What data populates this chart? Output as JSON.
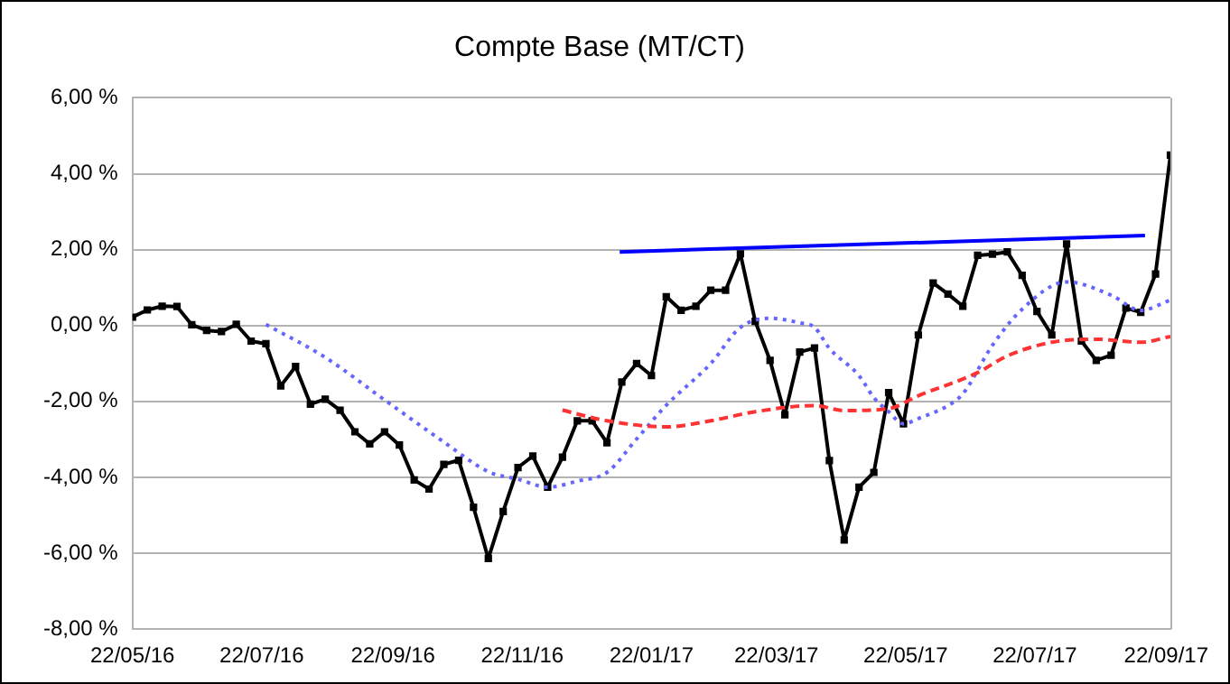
{
  "chart_data": {
    "type": "line",
    "title": "Compte Base (MT/CT)",
    "x": [
      "2016-05-22",
      "2016-05-29",
      "2016-06-05",
      "2016-06-12",
      "2016-06-19",
      "2016-06-26",
      "2016-07-03",
      "2016-07-10",
      "2016-07-17",
      "2016-07-24",
      "2016-07-31",
      "2016-08-07",
      "2016-08-14",
      "2016-08-21",
      "2016-08-28",
      "2016-09-04",
      "2016-09-11",
      "2016-09-18",
      "2016-09-25",
      "2016-10-02",
      "2016-10-09",
      "2016-10-16",
      "2016-10-23",
      "2016-10-30",
      "2016-11-06",
      "2016-11-13",
      "2016-11-20",
      "2016-11-27",
      "2016-12-04",
      "2016-12-11",
      "2016-12-18",
      "2016-12-25",
      "2017-01-01",
      "2017-01-08",
      "2017-01-15",
      "2017-01-22",
      "2017-01-29",
      "2017-02-05",
      "2017-02-12",
      "2017-02-19",
      "2017-02-26",
      "2017-03-05",
      "2017-03-12",
      "2017-03-19",
      "2017-03-26",
      "2017-04-02",
      "2017-04-09",
      "2017-04-16",
      "2017-04-23",
      "2017-04-30",
      "2017-05-07",
      "2017-05-14",
      "2017-05-21",
      "2017-05-28",
      "2017-06-04",
      "2017-06-11",
      "2017-06-18",
      "2017-06-25",
      "2017-07-02",
      "2017-07-09",
      "2017-07-16",
      "2017-07-23",
      "2017-07-30",
      "2017-08-06",
      "2017-08-13",
      "2017-08-20",
      "2017-08-27",
      "2017-09-03",
      "2017-09-10",
      "2017-09-17",
      "2017-09-24"
    ],
    "series": [
      {
        "color": "#000000",
        "marker": "square",
        "line_style": "solid",
        "values": [
          0.22,
          0.41,
          0.51,
          0.5,
          0.02,
          -0.13,
          -0.16,
          0.03,
          -0.41,
          -0.48,
          -1.59,
          -1.08,
          -2.07,
          -1.94,
          -2.23,
          -2.8,
          -3.12,
          -2.8,
          -3.15,
          -4.07,
          -4.31,
          -3.66,
          -3.55,
          -4.79,
          -6.14,
          -4.9,
          -3.74,
          -3.44,
          -4.26,
          -3.47,
          -2.51,
          -2.51,
          -3.09,
          -1.49,
          -1.0,
          -1.32,
          0.76,
          0.4,
          0.51,
          0.93,
          0.93,
          1.89,
          0.11,
          -0.92,
          -2.35,
          -0.7,
          -0.59,
          -3.56,
          -5.65,
          -4.26,
          -3.87,
          -1.77,
          -2.59,
          -0.25,
          1.12,
          0.83,
          0.51,
          1.85,
          1.88,
          1.94,
          1.32,
          0.37,
          -0.25,
          2.15,
          -0.41,
          -0.92,
          -0.78,
          0.46,
          0.35,
          1.36,
          4.49
        ]
      },
      {
        "color": "#6666ff",
        "marker": "none",
        "line_style": "dotted",
        "x": [
          "2016-07-24",
          "2016-08-21",
          "2016-09-18",
          "2016-10-16",
          "2016-11-06",
          "2016-11-20",
          "2016-12-04",
          "2016-12-18",
          "2017-01-01",
          "2017-01-15",
          "2017-01-29",
          "2017-02-19",
          "2017-03-05",
          "2017-03-19",
          "2017-04-02",
          "2017-04-09",
          "2017-04-16",
          "2017-04-30",
          "2017-05-07",
          "2017-05-14",
          "2017-05-21",
          "2017-05-28",
          "2017-06-11",
          "2017-06-18",
          "2017-07-02",
          "2017-07-16",
          "2017-08-06",
          "2017-08-27",
          "2017-09-10",
          "2017-09-24"
        ],
        "values": [
          0.03,
          -0.84,
          -1.96,
          -3.07,
          -3.85,
          -4.05,
          -4.26,
          -4.1,
          -3.87,
          -2.99,
          -2.1,
          -1.0,
          -0.05,
          0.19,
          0.07,
          -0.05,
          -0.6,
          -1.32,
          -1.9,
          -2.27,
          -2.59,
          -2.45,
          -2.11,
          -1.8,
          -0.52,
          0.43,
          1.15,
          0.8,
          0.4,
          0.67
        ]
      },
      {
        "color": "#ff3333",
        "marker": "none",
        "line_style": "dashed",
        "x": [
          "2016-12-11",
          "2017-01-01",
          "2017-01-29",
          "2017-02-19",
          "2017-03-12",
          "2017-04-09",
          "2017-04-23",
          "2017-05-14",
          "2017-05-28",
          "2017-06-25",
          "2017-07-09",
          "2017-07-30",
          "2017-08-20",
          "2017-09-10",
          "2017-09-24"
        ],
        "values": [
          -2.23,
          -2.51,
          -2.67,
          -2.51,
          -2.27,
          -2.11,
          -2.24,
          -2.19,
          -1.85,
          -1.24,
          -0.8,
          -0.44,
          -0.36,
          -0.44,
          -0.29
        ]
      },
      {
        "color": "#0000ff",
        "marker": "none",
        "line_style": "solid",
        "x": [
          "2017-01-07",
          "2017-09-12"
        ],
        "values": [
          1.94,
          2.37
        ]
      }
    ],
    "xlim": [
      "2016-05-22",
      "2017-09-24"
    ],
    "xticks": [
      {
        "value": "2016-05-22",
        "label": "22/05/16"
      },
      {
        "value": "2016-07-22",
        "label": "22/07/16"
      },
      {
        "value": "2016-09-22",
        "label": "22/09/16"
      },
      {
        "value": "2016-11-22",
        "label": "22/11/16"
      },
      {
        "value": "2017-01-22",
        "label": "22/01/17"
      },
      {
        "value": "2017-03-22",
        "label": "22/03/17"
      },
      {
        "value": "2017-05-22",
        "label": "22/05/17"
      },
      {
        "value": "2017-07-22",
        "label": "22/07/17"
      },
      {
        "value": "2017-09-22",
        "label": "22/09/17"
      }
    ],
    "ylim": [
      -8,
      6
    ],
    "yticks": [
      {
        "value": -8,
        "label": "-8,00 %"
      },
      {
        "value": -6,
        "label": "-6,00 %"
      },
      {
        "value": -4,
        "label": "-4,00 %"
      },
      {
        "value": -2,
        "label": "-2,00 %"
      },
      {
        "value": 0,
        "label": "0,00 %"
      },
      {
        "value": 2,
        "label": "2,00 %"
      },
      {
        "value": 4,
        "label": "4,00 %"
      },
      {
        "value": 6,
        "label": "6,00 %"
      }
    ],
    "grid": "y",
    "legend": false
  }
}
